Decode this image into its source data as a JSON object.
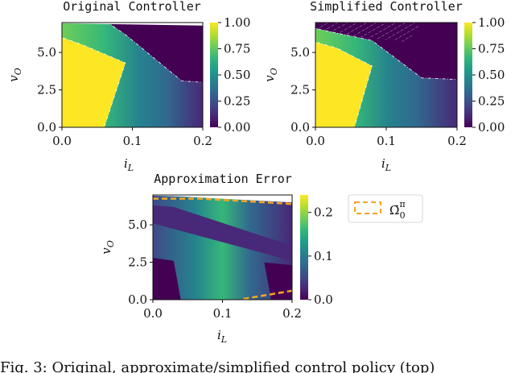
{
  "colors": {
    "viridis": [
      "#440154",
      "#482878",
      "#3e4a89",
      "#31688e",
      "#26828e",
      "#1f9e89",
      "#35b779",
      "#6ece58",
      "#b5de2b",
      "#fde725"
    ],
    "legend_orange": "#f5a623",
    "dashed_white": "#ffffff"
  },
  "chart_data": [
    {
      "type": "heatmap",
      "title": "Original Controller",
      "xlabel": "i",
      "xlabel_sub": "L",
      "ylabel": "v",
      "ylabel_sub": "O",
      "xlim": [
        0.0,
        0.2
      ],
      "ylim": [
        0.0,
        7.0
      ],
      "xticks": [
        "0.0",
        "0.1",
        "0.2"
      ],
      "yticks": [
        "0.0",
        "2.5",
        "5.0"
      ],
      "colorbar": {
        "range": [
          0.0,
          1.0
        ],
        "ticks": [
          "0.00",
          "0.25",
          "0.50",
          "0.75",
          "1.00"
        ]
      },
      "regions": [
        {
          "name": "saturated-high",
          "value": 1.0,
          "polygon": [
            [
              0,
              0
            ],
            [
              0.06,
              0
            ],
            [
              0.09,
              4.3
            ],
            [
              0.03,
              5.5
            ],
            [
              0,
              6.0
            ]
          ]
        },
        {
          "name": "saturated-low",
          "value": 0.0,
          "polygon": [
            [
              0.065,
              7.0
            ],
            [
              0.2,
              7.0
            ],
            [
              0.2,
              3.0
            ],
            [
              0.17,
              3.1
            ],
            [
              0.09,
              6.2
            ]
          ]
        }
      ]
    },
    {
      "type": "heatmap",
      "title": "Simplified Controller",
      "xlabel": "i",
      "xlabel_sub": "L",
      "ylabel": "v",
      "ylabel_sub": "O",
      "xlim": [
        0.0,
        0.2
      ],
      "ylim": [
        0.0,
        7.0
      ],
      "xticks": [
        "0.0",
        "0.1",
        "0.2"
      ],
      "yticks": [
        "0.0",
        "2.5",
        "5.0"
      ],
      "colorbar": {
        "range": [
          0.0,
          1.0
        ],
        "ticks": [
          "0.00",
          "0.25",
          "0.50",
          "0.75",
          "1.00"
        ]
      },
      "regions": [
        {
          "name": "saturated-high",
          "value": 1.0,
          "polygon": [
            [
              0,
              0
            ],
            [
              0.055,
              0
            ],
            [
              0.08,
              4.1
            ],
            [
              0.03,
              5.3
            ],
            [
              0,
              5.7
            ]
          ]
        },
        {
          "name": "saturated-low",
          "value": 0.0,
          "polygon": [
            [
              0.0,
              7.0
            ],
            [
              0.2,
              7.0
            ],
            [
              0.2,
              3.2
            ],
            [
              0.15,
              3.3
            ],
            [
              0.08,
              5.8
            ],
            [
              0.0,
              6.6
            ]
          ]
        }
      ]
    },
    {
      "type": "heatmap",
      "title": "Approximation Error",
      "xlabel": "i",
      "xlabel_sub": "L",
      "ylabel": "v",
      "ylabel_sub": "O",
      "xlim": [
        0.0,
        0.2
      ],
      "ylim": [
        0.0,
        7.0
      ],
      "xticks": [
        "0.0",
        "0.1",
        "0.2"
      ],
      "yticks": [
        "0.0",
        "2.5",
        "5.0"
      ],
      "colorbar": {
        "range": [
          0.0,
          0.24
        ],
        "ticks": [
          "0.0",
          "0.1",
          "0.2"
        ]
      },
      "legend": {
        "label": "Ω̄",
        "superscript": "π",
        "subscript": "0",
        "placement": "right"
      }
    }
  ],
  "caption": "Fig. 3: Original, approximate/simplified control policy (top)"
}
